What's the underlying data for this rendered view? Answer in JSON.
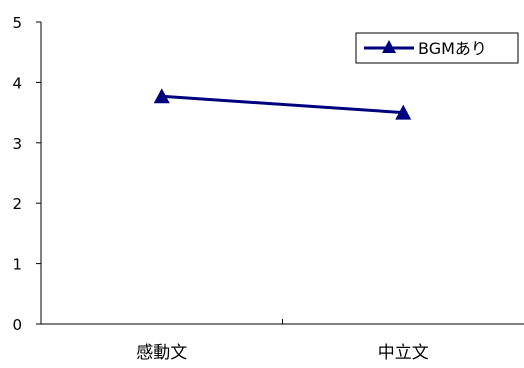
{
  "chart_data": {
    "type": "line",
    "categories": [
      "感動文",
      "中立文"
    ],
    "series": [
      {
        "name": "BGMあり",
        "values": [
          3.77,
          3.5
        ],
        "color": "#00007f",
        "marker": "triangle"
      }
    ],
    "ylim": [
      0,
      5
    ],
    "yticks": [
      0,
      1,
      2,
      3,
      4,
      5
    ],
    "grid": false,
    "legend": "top-right"
  }
}
